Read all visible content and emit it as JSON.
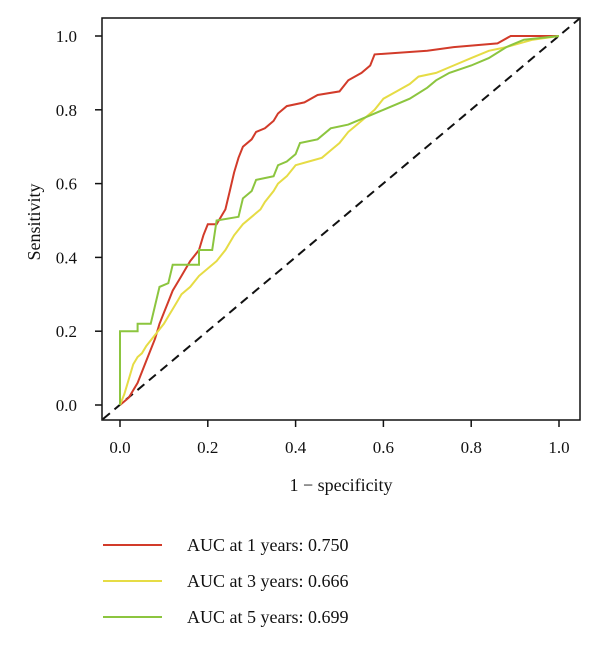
{
  "chart_data": {
    "type": "line",
    "title": "",
    "xlabel": "1 − specificity",
    "ylabel": "Sensitivity",
    "xlim": [
      0,
      1
    ],
    "ylim": [
      0,
      1
    ],
    "x_ticks": [
      "0.0",
      "0.2",
      "0.4",
      "0.6",
      "0.8",
      "1.0"
    ],
    "y_ticks": [
      "0.0",
      "0.2",
      "0.4",
      "0.6",
      "0.8",
      "1.0"
    ],
    "grid": false,
    "legend_position": "bottom",
    "reference_line": {
      "from": [
        0,
        0
      ],
      "to": [
        1,
        1
      ],
      "style": "dashed",
      "color": "#111111"
    },
    "series": [
      {
        "name": "AUC at 1 years: 0.750",
        "color": "#d23b2a",
        "points": [
          [
            0,
            0
          ],
          [
            0.02,
            0.02
          ],
          [
            0.04,
            0.06
          ],
          [
            0.06,
            0.12
          ],
          [
            0.08,
            0.18
          ],
          [
            0.09,
            0.22
          ],
          [
            0.1,
            0.25
          ],
          [
            0.11,
            0.28
          ],
          [
            0.12,
            0.31
          ],
          [
            0.13,
            0.33
          ],
          [
            0.14,
            0.35
          ],
          [
            0.15,
            0.37
          ],
          [
            0.16,
            0.39
          ],
          [
            0.18,
            0.42
          ],
          [
            0.19,
            0.46
          ],
          [
            0.2,
            0.49
          ],
          [
            0.22,
            0.49
          ],
          [
            0.23,
            0.51
          ],
          [
            0.24,
            0.53
          ],
          [
            0.25,
            0.58
          ],
          [
            0.26,
            0.63
          ],
          [
            0.27,
            0.67
          ],
          [
            0.28,
            0.7
          ],
          [
            0.3,
            0.72
          ],
          [
            0.31,
            0.74
          ],
          [
            0.33,
            0.75
          ],
          [
            0.35,
            0.77
          ],
          [
            0.36,
            0.79
          ],
          [
            0.38,
            0.81
          ],
          [
            0.42,
            0.82
          ],
          [
            0.45,
            0.84
          ],
          [
            0.5,
            0.85
          ],
          [
            0.52,
            0.88
          ],
          [
            0.55,
            0.9
          ],
          [
            0.57,
            0.92
          ],
          [
            0.58,
            0.95
          ],
          [
            0.7,
            0.96
          ],
          [
            0.76,
            0.97
          ],
          [
            0.86,
            0.98
          ],
          [
            0.89,
            1
          ],
          [
            1,
            1
          ]
        ]
      },
      {
        "name": "AUC at 3 years: 0.666",
        "color": "#e6dc45",
        "points": [
          [
            0,
            0
          ],
          [
            0.01,
            0.03
          ],
          [
            0.02,
            0.07
          ],
          [
            0.03,
            0.11
          ],
          [
            0.04,
            0.13
          ],
          [
            0.05,
            0.14
          ],
          [
            0.06,
            0.16
          ],
          [
            0.08,
            0.19
          ],
          [
            0.1,
            0.22
          ],
          [
            0.11,
            0.24
          ],
          [
            0.12,
            0.26
          ],
          [
            0.13,
            0.28
          ],
          [
            0.14,
            0.3
          ],
          [
            0.16,
            0.32
          ],
          [
            0.18,
            0.35
          ],
          [
            0.2,
            0.37
          ],
          [
            0.22,
            0.39
          ],
          [
            0.24,
            0.42
          ],
          [
            0.26,
            0.46
          ],
          [
            0.28,
            0.49
          ],
          [
            0.3,
            0.51
          ],
          [
            0.32,
            0.53
          ],
          [
            0.33,
            0.55
          ],
          [
            0.35,
            0.58
          ],
          [
            0.36,
            0.6
          ],
          [
            0.38,
            0.62
          ],
          [
            0.4,
            0.65
          ],
          [
            0.43,
            0.66
          ],
          [
            0.46,
            0.67
          ],
          [
            0.48,
            0.69
          ],
          [
            0.5,
            0.71
          ],
          [
            0.52,
            0.74
          ],
          [
            0.55,
            0.77
          ],
          [
            0.58,
            0.8
          ],
          [
            0.6,
            0.83
          ],
          [
            0.63,
            0.85
          ],
          [
            0.66,
            0.87
          ],
          [
            0.68,
            0.89
          ],
          [
            0.72,
            0.9
          ],
          [
            0.76,
            0.92
          ],
          [
            0.8,
            0.94
          ],
          [
            0.84,
            0.96
          ],
          [
            0.88,
            0.97
          ],
          [
            0.94,
            0.99
          ],
          [
            1,
            1
          ]
        ]
      },
      {
        "name": "AUC at 5 years: 0.699",
        "color": "#8cc53f",
        "points": [
          [
            0,
            0
          ],
          [
            0,
            0.2
          ],
          [
            0.04,
            0.2
          ],
          [
            0.04,
            0.22
          ],
          [
            0.07,
            0.22
          ],
          [
            0.08,
            0.27
          ],
          [
            0.09,
            0.32
          ],
          [
            0.11,
            0.33
          ],
          [
            0.12,
            0.38
          ],
          [
            0.18,
            0.38
          ],
          [
            0.18,
            0.42
          ],
          [
            0.21,
            0.42
          ],
          [
            0.22,
            0.5
          ],
          [
            0.27,
            0.51
          ],
          [
            0.28,
            0.56
          ],
          [
            0.3,
            0.58
          ],
          [
            0.31,
            0.61
          ],
          [
            0.35,
            0.62
          ],
          [
            0.36,
            0.65
          ],
          [
            0.38,
            0.66
          ],
          [
            0.4,
            0.68
          ],
          [
            0.41,
            0.71
          ],
          [
            0.45,
            0.72
          ],
          [
            0.48,
            0.75
          ],
          [
            0.52,
            0.76
          ],
          [
            0.56,
            0.78
          ],
          [
            0.6,
            0.8
          ],
          [
            0.66,
            0.83
          ],
          [
            0.7,
            0.86
          ],
          [
            0.72,
            0.88
          ],
          [
            0.75,
            0.9
          ],
          [
            0.8,
            0.92
          ],
          [
            0.84,
            0.94
          ],
          [
            0.88,
            0.97
          ],
          [
            0.92,
            0.99
          ],
          [
            1,
            1
          ]
        ]
      }
    ]
  }
}
